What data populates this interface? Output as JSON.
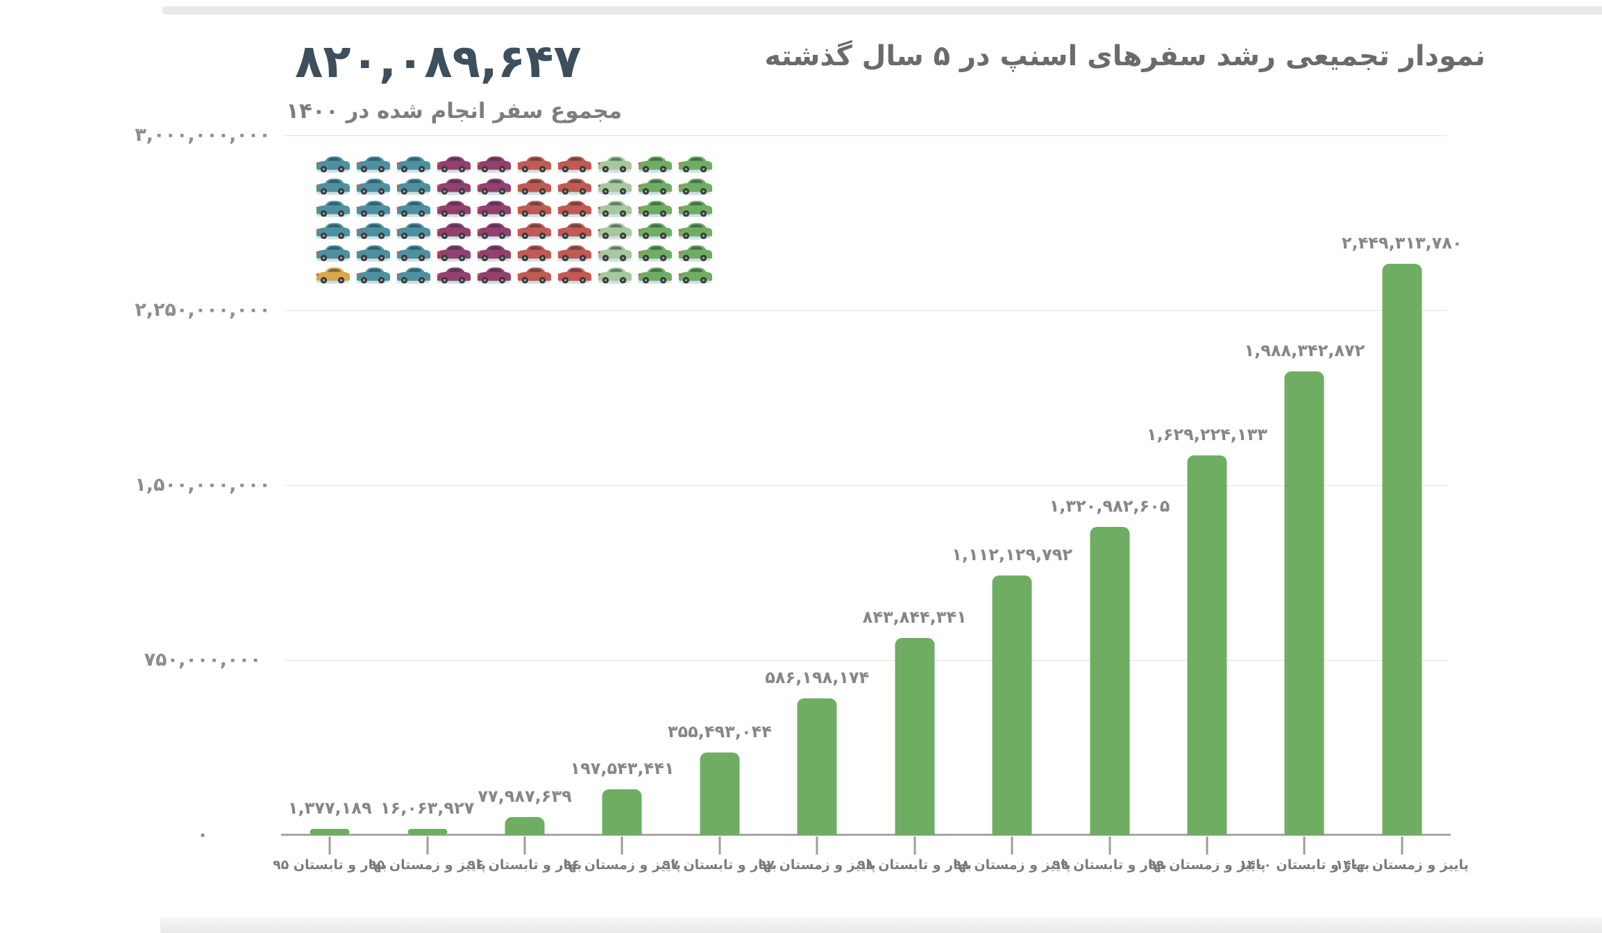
{
  "page": {
    "title": "نمودار تجمیعی رشد سفرهای اسنپ در ۵ سال گذشته",
    "stat_number": "۸۲۰,۰۸۹,۶۴۷",
    "stat_caption": "مجموع سفر انجام شده در ۱۴۰۰"
  },
  "chart_data": {
    "type": "bar",
    "title": "نمودار تجمیعی رشد سفرهای اسنپ در ۵ سال گذشته",
    "categories": [
      "بهار و تابستان ۹۵",
      "پاییز و زمستان ۹۵",
      "بهار و تابستان ۹۶",
      "پاییز و زمستان ۹۶",
      "بهار و تابستان ۹۷",
      "پاییز و زمستان ۹۷",
      "بهار و تابستان ۹۸",
      "پاییز و زمستان ۹۸",
      "بهار و تابستان ۹۹",
      "پاییز و زمستان ۹۹",
      "بهار و تابستان ۱۴۰۰",
      "پاییز و زمستان ۱۴۰۰"
    ],
    "values": [
      1377189,
      16063927,
      77987639,
      197543441,
      355493044,
      586198174,
      843844341,
      1112129792,
      1320982605,
      1629224133,
      1988342872,
      2449313780
    ],
    "value_labels": [
      "۱,۳۷۷,۱۸۹",
      "۱۶,۰۶۳,۹۲۷",
      "۷۷,۹۸۷,۶۳۹",
      "۱۹۷,۵۴۳,۴۴۱",
      "۳۵۵,۴۹۳,۰۴۴",
      "۵۸۶,۱۹۸,۱۷۴",
      "۸۴۳,۸۴۴,۳۴۱",
      "۱,۱۱۲,۱۲۹,۷۹۲",
      "۱,۳۲۰,۹۸۲,۶۰۵",
      "۱,۶۲۹,۲۲۴,۱۳۳",
      "۱,۹۸۸,۳۴۲,۸۷۲",
      "۲,۴۴۹,۳۱۳,۷۸۰"
    ],
    "xlabel": "",
    "ylabel": "",
    "ylim": [
      0,
      3000000000
    ],
    "grid": true,
    "legend_position": "none",
    "bar_color": "#6fae62",
    "y_ticks": [
      {
        "value": 3000000000,
        "label": "۳,۰۰۰,۰۰۰,۰۰۰"
      },
      {
        "value": 2250000000,
        "label": "۲,۲۵۰,۰۰۰,۰۰۰"
      },
      {
        "value": 1500000000,
        "label": "۱,۵۰۰,۰۰۰,۰۰۰"
      },
      {
        "value": 750000000,
        "label": "۷۵۰,۰۰۰,۰۰۰"
      },
      {
        "value": 0,
        "label": "۰"
      }
    ]
  },
  "pictograph": {
    "colors": {
      "teal": "#4d91a1",
      "purple": "#93406e",
      "red": "#c05a52",
      "lightgreen": "#a6c89c",
      "green": "#6fae62",
      "yellow": "#d8a74f"
    },
    "rows": [
      [
        "teal",
        "teal",
        "teal",
        "purple",
        "purple",
        "red",
        "red",
        "lightgreen",
        "green",
        "green"
      ],
      [
        "teal",
        "teal",
        "teal",
        "purple",
        "purple",
        "red",
        "red",
        "lightgreen",
        "green",
        "green"
      ],
      [
        "teal",
        "teal",
        "teal",
        "purple",
        "purple",
        "red",
        "red",
        "lightgreen",
        "green",
        "green"
      ],
      [
        "teal",
        "teal",
        "teal",
        "purple",
        "purple",
        "red",
        "red",
        "lightgreen",
        "green",
        "green"
      ],
      [
        "teal",
        "teal",
        "teal",
        "purple",
        "purple",
        "red",
        "red",
        "lightgreen",
        "green",
        "green"
      ],
      [
        "yellow",
        "teal",
        "teal",
        "purple",
        "purple",
        "red",
        "red",
        "lightgreen",
        "green",
        "green"
      ]
    ]
  }
}
